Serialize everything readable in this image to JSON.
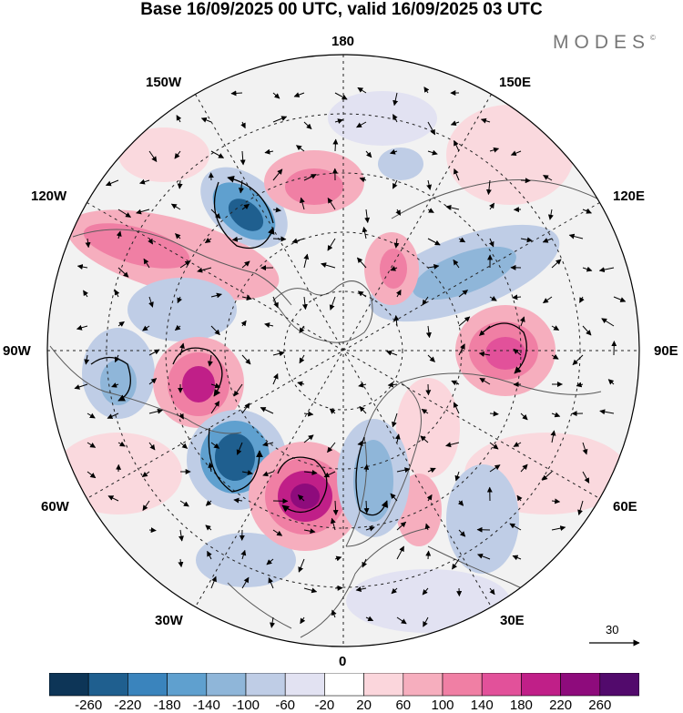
{
  "title": "Base 16/09/2025 00 UTC, valid 16/09/2025 03 UTC",
  "brand": "MODES",
  "brand_mark": "©",
  "longitude_labels": {
    "top": "180",
    "top_left": "150W",
    "top_right": "150E",
    "upper_left": "120W",
    "upper_right": "120E",
    "left": "90W",
    "right": "90E",
    "lower_left": "60W",
    "lower_right": "60E",
    "bottom_left": "30W",
    "bottom_right": "30E",
    "bottom": "0"
  },
  "vector_scale": {
    "label": "30"
  },
  "colorbar": {
    "colors": [
      "#0d3557",
      "#1f5f8f",
      "#3a84bd",
      "#5fa0cf",
      "#8fb6d9",
      "#bfcde6",
      "#e2e2f2",
      "#ffffff",
      "#fbd6dc",
      "#f6aebe",
      "#f07fa4",
      "#e2519a",
      "#c01f88",
      "#8e0b7c",
      "#520a6c"
    ],
    "ticks": [
      "-260",
      "-220",
      "-180",
      "-140",
      "-100",
      "-60",
      "-20",
      "20",
      "60",
      "100",
      "140",
      "180",
      "220",
      "260"
    ]
  },
  "map_colors": {
    "background": "#f0f0f0",
    "land_outline": "#5a5a5a",
    "grid": "#222222",
    "vectors": "#000000"
  }
}
